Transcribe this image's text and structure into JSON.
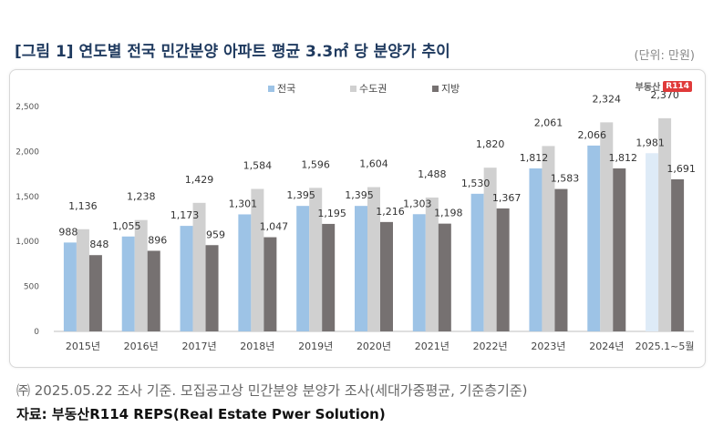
{
  "header": {
    "title": "[그림 1] 연도별 전국 민간분양 아파트 평균 3.3㎡  당 분양가 추이",
    "unit": "(단위: 만원)"
  },
  "brand": {
    "name": "부동산",
    "badge": "R114"
  },
  "footer": {
    "note": "㈜ 2025.05.22 조사 기준. 모집공고상 민간분양 분양가 조사(세대가중평균, 기준층기준)",
    "source": "자료: 부동산R114 REPS(Real Estate Pwer Solution)"
  },
  "chart_data": {
    "type": "bar",
    "categories": [
      "2015년",
      "2016년",
      "2017년",
      "2018년",
      "2019년",
      "2020년",
      "2021년",
      "2022년",
      "2023년",
      "2024년",
      "2025.1~5월"
    ],
    "series": [
      {
        "name": "전국",
        "color": "#9dc3e6",
        "values": [
          988,
          1055,
          1173,
          1301,
          1395,
          1395,
          1303,
          1530,
          1812,
          2066,
          1981
        ]
      },
      {
        "name": "수도권",
        "color": "#d0d0d0",
        "values": [
          1136,
          1238,
          1429,
          1584,
          1596,
          1604,
          1488,
          1820,
          2061,
          2324,
          2370
        ]
      },
      {
        "name": "지방",
        "color": "#767171",
        "values": [
          848,
          896,
          959,
          1047,
          1195,
          1216,
          1198,
          1367,
          1583,
          1812,
          1691
        ]
      }
    ],
    "highlight_last_color": "#deebf7",
    "ylim": [
      0,
      2500
    ],
    "yticks": [
      0,
      500,
      1000,
      1500,
      2000,
      2500
    ],
    "ytick_labels": [
      "0",
      "500",
      "1,000",
      "1,500",
      "2,000",
      "2,500"
    ],
    "legend": "top-center",
    "grid": false
  }
}
